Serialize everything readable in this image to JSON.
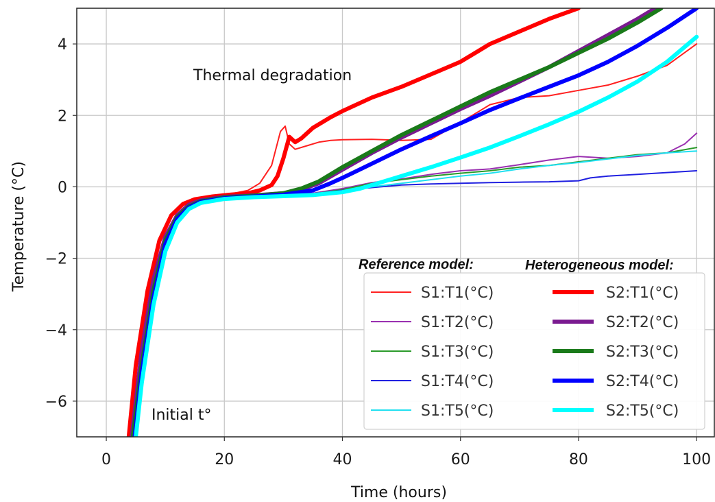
{
  "chart_data": {
    "type": "line",
    "xlabel": "Time (hours)",
    "ylabel": "Temperature (°C)",
    "xlim": [
      -5,
      103
    ],
    "ylim": [
      -7,
      5
    ],
    "xticks": [
      0,
      20,
      40,
      60,
      80,
      100
    ],
    "yticks": [
      -6,
      -4,
      -2,
      0,
      2,
      4
    ],
    "xtick_labels": [
      "0",
      "20",
      "40",
      "60",
      "80",
      "100"
    ],
    "ytick_labels": [
      "−6",
      "−4",
      "−2",
      "0",
      "2",
      "4"
    ],
    "grid": true,
    "annotations": [
      {
        "text": "Thermal degradation",
        "x": 32,
        "y": 3.2
      },
      {
        "text": "Initial t°",
        "x": 8.5,
        "y": -6.45
      }
    ],
    "legend": {
      "placement": "lower-right",
      "group_titles": [
        "Reference model:",
        "Heterogeneous model:"
      ]
    },
    "series": [
      {
        "name": "S1:T1(°C)",
        "group": "reference",
        "color": "#ff2020",
        "x": [
          3.8,
          5,
          7,
          9,
          11,
          13,
          15,
          18,
          21,
          24,
          26,
          28,
          29.5,
          30.3,
          31,
          32,
          34,
          36,
          38,
          40,
          45,
          50,
          55,
          60,
          65,
          70,
          75,
          80,
          85,
          90,
          95,
          100
        ],
        "y": [
          -7,
          -5.2,
          -3.1,
          -1.6,
          -0.85,
          -0.5,
          -0.35,
          -0.27,
          -0.2,
          -0.1,
          0.1,
          0.6,
          1.55,
          1.7,
          1.2,
          1.05,
          1.15,
          1.25,
          1.3,
          1.32,
          1.33,
          1.3,
          1.33,
          1.8,
          2.3,
          2.5,
          2.55,
          2.7,
          2.85,
          3.1,
          3.4,
          4.0
        ]
      },
      {
        "name": "S1:T2(°C)",
        "group": "reference",
        "color": "#9a30b0",
        "x": [
          4.3,
          6,
          8,
          10,
          12,
          14,
          16,
          20,
          25,
          30,
          35,
          40,
          45,
          50,
          55,
          60,
          65,
          70,
          75,
          80,
          85,
          90,
          95,
          98,
          100
        ],
        "y": [
          -7,
          -4.6,
          -2.6,
          -1.4,
          -0.8,
          -0.5,
          -0.38,
          -0.28,
          -0.25,
          -0.22,
          -0.18,
          -0.05,
          0.12,
          0.22,
          0.35,
          0.45,
          0.5,
          0.62,
          0.75,
          0.85,
          0.8,
          0.85,
          0.95,
          1.2,
          1.5
        ]
      },
      {
        "name": "S1:T3(°C)",
        "group": "reference",
        "color": "#2a9a2a",
        "x": [
          4.5,
          6,
          8,
          10,
          12,
          14,
          16,
          20,
          25,
          30,
          35,
          40,
          45,
          50,
          55,
          60,
          65,
          70,
          75,
          80,
          85,
          90,
          95,
          100
        ],
        "y": [
          -7,
          -5,
          -2.9,
          -1.5,
          -0.85,
          -0.55,
          -0.4,
          -0.3,
          -0.26,
          -0.23,
          -0.2,
          -0.08,
          0.1,
          0.2,
          0.3,
          0.38,
          0.45,
          0.55,
          0.6,
          0.7,
          0.8,
          0.9,
          0.95,
          1.1
        ]
      },
      {
        "name": "S1:T4(°C)",
        "group": "reference",
        "color": "#2020e0",
        "x": [
          4.8,
          6,
          8,
          10,
          12,
          14,
          16,
          20,
          25,
          30,
          35,
          40,
          45,
          50,
          55,
          60,
          65,
          70,
          75,
          80,
          82,
          85,
          90,
          95,
          100
        ],
        "y": [
          -7,
          -5.2,
          -3.1,
          -1.6,
          -0.9,
          -0.58,
          -0.42,
          -0.32,
          -0.27,
          -0.24,
          -0.2,
          -0.1,
          -0.02,
          0.05,
          0.08,
          0.1,
          0.12,
          0.13,
          0.14,
          0.17,
          0.25,
          0.3,
          0.35,
          0.4,
          0.45
        ]
      },
      {
        "name": "S1:T5(°C)",
        "group": "reference",
        "color": "#20e0f0",
        "x": [
          5,
          6,
          8,
          10,
          12,
          14,
          16,
          20,
          25,
          30,
          35,
          40,
          45,
          50,
          55,
          60,
          65,
          70,
          75,
          80,
          85,
          90,
          95,
          100
        ],
        "y": [
          -7,
          -5.5,
          -3.3,
          -1.8,
          -1.0,
          -0.62,
          -0.45,
          -0.34,
          -0.28,
          -0.25,
          -0.22,
          -0.12,
          0.0,
          0.1,
          0.2,
          0.3,
          0.38,
          0.5,
          0.6,
          0.68,
          0.78,
          0.88,
          0.95,
          1.0
        ]
      },
      {
        "name": "S2:T1(°C)",
        "group": "heterogeneous",
        "color": "#ff0000",
        "x": [
          3.8,
          5,
          7,
          9,
          11,
          13,
          15,
          18,
          21,
          24,
          26,
          28,
          29,
          30,
          31,
          32,
          33,
          35,
          38,
          40,
          45,
          50,
          55,
          60,
          63,
          65,
          70,
          75,
          80
        ],
        "y": [
          -7,
          -5.0,
          -2.9,
          -1.5,
          -0.8,
          -0.48,
          -0.35,
          -0.27,
          -0.22,
          -0.18,
          -0.1,
          0.05,
          0.3,
          0.8,
          1.4,
          1.25,
          1.35,
          1.65,
          1.95,
          2.12,
          2.5,
          2.8,
          3.15,
          3.5,
          3.8,
          4.0,
          4.35,
          4.7,
          5.0
        ]
      },
      {
        "name": "S2:T2(°C)",
        "group": "heterogeneous",
        "color": "#7a1a90",
        "x": [
          4.3,
          6,
          8,
          10,
          12,
          14,
          16,
          20,
          25,
          30,
          33,
          36,
          40,
          45,
          50,
          55,
          60,
          65,
          70,
          75,
          80,
          85,
          90,
          93
        ],
        "y": [
          -7,
          -4.6,
          -2.6,
          -1.4,
          -0.8,
          -0.5,
          -0.38,
          -0.28,
          -0.24,
          -0.18,
          -0.08,
          0.1,
          0.48,
          0.95,
          1.38,
          1.78,
          2.18,
          2.55,
          2.95,
          3.35,
          3.8,
          4.25,
          4.7,
          5.0
        ]
      },
      {
        "name": "S2:T3(°C)",
        "group": "heterogeneous",
        "color": "#1a7a1a",
        "x": [
          4.5,
          6,
          8,
          10,
          12,
          14,
          16,
          20,
          25,
          30,
          33,
          36,
          40,
          45,
          50,
          55,
          60,
          65,
          70,
          75,
          80,
          85,
          90,
          94
        ],
        "y": [
          -7,
          -5,
          -2.9,
          -1.5,
          -0.85,
          -0.55,
          -0.4,
          -0.3,
          -0.25,
          -0.18,
          -0.05,
          0.15,
          0.55,
          1.0,
          1.45,
          1.85,
          2.25,
          2.65,
          3.0,
          3.35,
          3.75,
          4.15,
          4.6,
          5.0
        ]
      },
      {
        "name": "S2:T4(°C)",
        "group": "heterogeneous",
        "color": "#0000ff",
        "x": [
          4.8,
          6,
          8,
          10,
          12,
          14,
          16,
          20,
          25,
          30,
          35,
          38,
          40,
          45,
          50,
          55,
          60,
          65,
          70,
          75,
          80,
          85,
          90,
          95,
          100
        ],
        "y": [
          -7,
          -5.2,
          -3.1,
          -1.6,
          -0.9,
          -0.58,
          -0.42,
          -0.32,
          -0.27,
          -0.22,
          -0.1,
          0.1,
          0.25,
          0.65,
          1.05,
          1.42,
          1.78,
          2.15,
          2.48,
          2.8,
          3.12,
          3.5,
          3.95,
          4.45,
          5.0
        ]
      },
      {
        "name": "S2:T5(°C)",
        "group": "heterogeneous",
        "color": "#00ffff",
        "x": [
          5,
          6,
          8,
          10,
          12,
          14,
          16,
          20,
          25,
          30,
          35,
          40,
          43,
          46,
          50,
          55,
          60,
          65,
          70,
          75,
          80,
          85,
          90,
          95,
          100
        ],
        "y": [
          -7,
          -5.5,
          -3.3,
          -1.8,
          -1.0,
          -0.62,
          -0.45,
          -0.34,
          -0.29,
          -0.26,
          -0.23,
          -0.15,
          -0.05,
          0.1,
          0.3,
          0.55,
          0.82,
          1.1,
          1.42,
          1.75,
          2.1,
          2.5,
          2.95,
          3.5,
          4.2
        ]
      }
    ]
  }
}
